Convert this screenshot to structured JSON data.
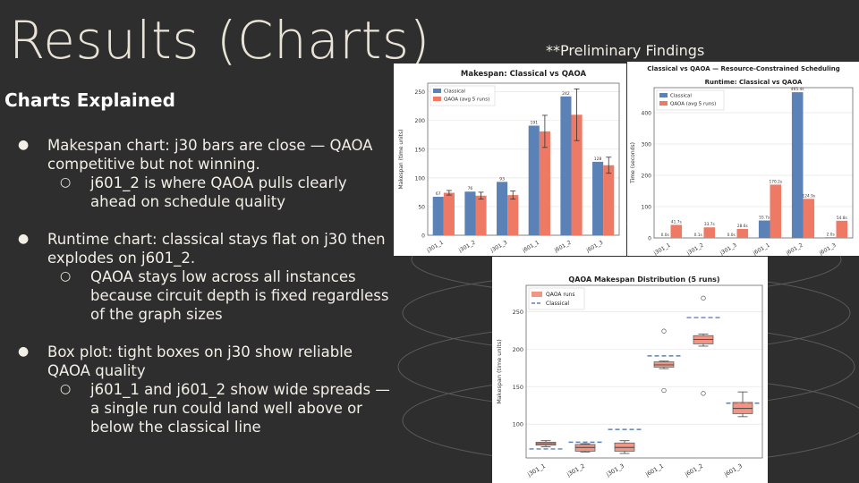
{
  "slide": {
    "title": "Results (Charts)",
    "subtitle": "**Preliminary Findings",
    "section_heading": "Charts Explained",
    "bullets": [
      {
        "text": "Makespan chart: j30 bars are close — QAOA competitive but not winning.",
        "sub": "j601_2 is where QAOA pulls clearly ahead on schedule quality"
      },
      {
        "text": "Runtime chart: classical stays flat on j30 then explodes on j601_2.",
        "sub": "QAOA stays low across all instances because circuit depth is fixed regardless of the graph sizes"
      },
      {
        "text": "Box plot: tight boxes on j30 show reliable QAOA quality",
        "sub": " j601_1 and j601_2 show wide spreads — a single run could land well above or below the classical line"
      }
    ]
  },
  "colors": {
    "classical": "#5b82b6",
    "qaoa": "#ee7a66",
    "background": "#2e2e2e"
  },
  "chart_data": [
    {
      "type": "bar",
      "title": "Makespan: Classical vs QAOA",
      "ylabel": "Makespan (time units)",
      "xlabel": "",
      "categories": [
        "j301_1",
        "j301_2",
        "j301_3",
        "j601_1",
        "j601_2",
        "j601_3"
      ],
      "series": [
        {
          "name": "Classical",
          "values": [
            67,
            76,
            93,
            191,
            242,
            128
          ]
        },
        {
          "name": "QAOA (avg 5 runs)",
          "values": [
            74,
            69,
            70,
            181,
            210,
            122
          ]
        }
      ],
      "qaoa_error": [
        4,
        6,
        7,
        28,
        45,
        14
      ],
      "data_labels": [
        "67",
        "76",
        "93",
        "191",
        "242",
        "128"
      ],
      "ylim": [
        0,
        265
      ],
      "yticks": [
        0,
        50,
        100,
        150,
        200,
        250
      ],
      "grid": true,
      "legend": "top-left"
    },
    {
      "type": "bar",
      "suptitle": "Classical vs QAOA — Resource-Constrained Scheduling",
      "title": "Runtime: Classical vs QAOA",
      "ylabel": "Time (seconds)",
      "xlabel": "",
      "categories": [
        "j301_1",
        "j301_2",
        "j301_3",
        "j601_1",
        "j601_2",
        "j601_3"
      ],
      "series": [
        {
          "name": "Classical",
          "values": [
            0.0,
            0.1,
            0.0,
            55.7,
            465.4,
            2.0
          ]
        },
        {
          "name": "QAOA (avg 5 runs)",
          "values": [
            41.7,
            33.7,
            28.6,
            170.2,
            124.9,
            54.8
          ]
        }
      ],
      "data_labels_classical": [
        "0.0s",
        "0.1s",
        "0.0s",
        "55.7s",
        "465.4s",
        "2.0s"
      ],
      "data_labels_qaoa": [
        "41.7s",
        "33.7s",
        "28.6s",
        "170.2s",
        "124.9s",
        "54.8s"
      ],
      "ylim": [
        0,
        480
      ],
      "yticks": [
        0,
        100,
        200,
        300,
        400
      ],
      "grid": true,
      "legend": "top-left"
    },
    {
      "type": "box",
      "title": "QAOA Makespan Distribution (5 runs)",
      "ylabel": "Makespan (time units)",
      "xlabel": "",
      "categories": [
        "j301_1",
        "j301_2",
        "j301_3",
        "j601_1",
        "j601_2",
        "j601_3"
      ],
      "legend_entries": [
        "QAOA runs",
        "Classical"
      ],
      "boxes": [
        {
          "whislo": 70,
          "q1": 72,
          "med": 74,
          "q3": 76,
          "whishi": 78,
          "fliers": []
        },
        {
          "whislo": 63,
          "q1": 64,
          "med": 69,
          "q3": 73,
          "whishi": 74,
          "fliers": []
        },
        {
          "whislo": 61,
          "q1": 64,
          "med": 69,
          "q3": 75,
          "whishi": 78,
          "fliers": []
        },
        {
          "whislo": 174,
          "q1": 176,
          "med": 179,
          "q3": 183,
          "whishi": 184,
          "fliers": [
            224,
            145
          ]
        },
        {
          "whislo": 204,
          "q1": 207,
          "med": 213,
          "q3": 218,
          "whishi": 220,
          "fliers": [
            268,
            141
          ]
        },
        {
          "whislo": 110,
          "q1": 114,
          "med": 121,
          "q3": 129,
          "whishi": 143,
          "fliers": []
        }
      ],
      "classical": [
        67,
        76,
        93,
        191,
        242,
        128
      ],
      "ylim": [
        55,
        285
      ],
      "yticks": [
        100,
        150,
        200,
        250
      ],
      "grid": true,
      "legend": "top-left"
    }
  ]
}
